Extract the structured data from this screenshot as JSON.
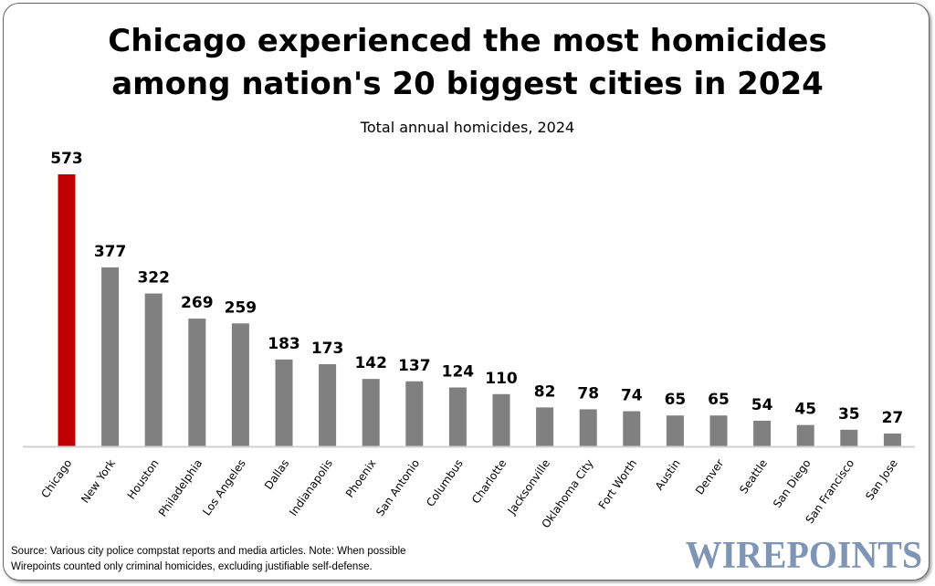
{
  "chart_data": {
    "type": "bar",
    "title": "Chicago experienced the most homicides among nation's 20 biggest cities in 2024",
    "subtitle": "Total annual homicides, 2024",
    "xlabel": "",
    "ylabel": "",
    "categories": [
      "Chicago",
      "New York",
      "Houston",
      "Philadelphia",
      "Los Angeles",
      "Dallas",
      "Indianapolis",
      "Phoenix",
      "San Antonio",
      "Columbus",
      "Charlotte",
      "Jacksonville",
      "Oklahoma City",
      "Fort Worth",
      "Austin",
      "Denver",
      "Seattle",
      "San Diego",
      "San Francisco",
      "San Jose"
    ],
    "values": [
      573,
      377,
      322,
      269,
      259,
      183,
      173,
      142,
      137,
      124,
      110,
      82,
      78,
      74,
      65,
      65,
      54,
      45,
      35,
      27
    ],
    "ylim": [
      0,
      573
    ],
    "grid": false,
    "highlight_color": "#c00000",
    "bar_color": "#808080"
  },
  "footer": {
    "source_line1": "Source: Various city police compstat reports and media articles. Note: When possible",
    "source_line2": "Wirepoints counted only criminal homicides, excluding justifiable self-defense.",
    "logo": "WIREPOINTS"
  }
}
